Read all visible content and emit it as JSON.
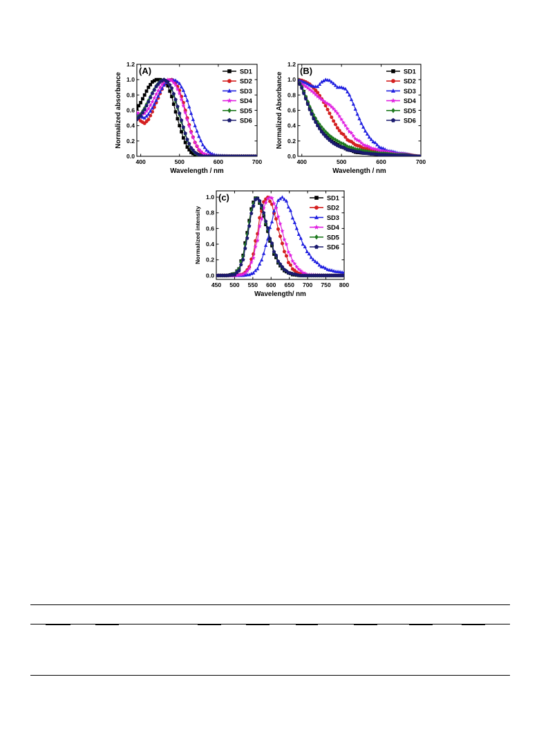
{
  "colors": {
    "SD1": "#000000",
    "SD2": "#d42020",
    "SD3": "#2020e0",
    "SD4": "#e020e0",
    "SD5": "#1f7a1f",
    "SD6": "#1a1a6e"
  },
  "chart_data": [
    {
      "type": "line",
      "panel_label": "(A)",
      "xlabel": "Wavelength / nm",
      "ylabel": "Normalized absorbance",
      "xlim": [
        390,
        700
      ],
      "ylim": [
        0.0,
        1.2
      ],
      "xticks": [
        "400",
        "500",
        "600",
        "700"
      ],
      "yticks": [
        "0.0",
        "0.2",
        "0.4",
        "0.6",
        "0.8",
        "1.0",
        "1.2"
      ],
      "legend_position": "top-right",
      "series": [
        {
          "name": "SD1",
          "marker": "square",
          "x": [
            390,
            400,
            410,
            420,
            430,
            440,
            450,
            460,
            470,
            480,
            490,
            500,
            510,
            520,
            530,
            540,
            550,
            560,
            580,
            600,
            650,
            700
          ],
          "y": [
            0.62,
            0.7,
            0.8,
            0.9,
            0.97,
            1.0,
            1.0,
            0.98,
            0.92,
            0.78,
            0.58,
            0.4,
            0.24,
            0.12,
            0.05,
            0.02,
            0.01,
            0.0,
            0.0,
            0.0,
            0.0,
            0.0
          ]
        },
        {
          "name": "SD2",
          "marker": "circle",
          "x": [
            390,
            400,
            410,
            420,
            430,
            440,
            450,
            460,
            470,
            480,
            490,
            500,
            510,
            520,
            530,
            540,
            550,
            560,
            570,
            580,
            600,
            650,
            700
          ],
          "y": [
            0.52,
            0.46,
            0.43,
            0.48,
            0.58,
            0.7,
            0.82,
            0.93,
            0.99,
            1.0,
            0.96,
            0.86,
            0.7,
            0.5,
            0.32,
            0.18,
            0.08,
            0.03,
            0.01,
            0.0,
            0.0,
            0.0,
            0.0
          ]
        },
        {
          "name": "SD3",
          "marker": "triangle",
          "x": [
            390,
            400,
            410,
            420,
            430,
            440,
            450,
            460,
            470,
            480,
            490,
            500,
            510,
            520,
            530,
            540,
            550,
            560,
            570,
            580,
            590,
            600,
            650,
            700
          ],
          "y": [
            0.55,
            0.52,
            0.5,
            0.55,
            0.63,
            0.73,
            0.84,
            0.93,
            0.99,
            1.0,
            0.99,
            0.95,
            0.86,
            0.73,
            0.56,
            0.4,
            0.26,
            0.15,
            0.08,
            0.04,
            0.02,
            0.01,
            0.0,
            0.0
          ]
        },
        {
          "name": "SD4",
          "marker": "star",
          "x": [
            390,
            400,
            410,
            420,
            430,
            440,
            450,
            460,
            470,
            480,
            490,
            500,
            510,
            520,
            530,
            540,
            550,
            560,
            570,
            580,
            600,
            650,
            700
          ],
          "y": [
            0.57,
            0.55,
            0.56,
            0.62,
            0.71,
            0.81,
            0.9,
            0.97,
            1.0,
            0.99,
            0.93,
            0.82,
            0.66,
            0.48,
            0.31,
            0.18,
            0.09,
            0.04,
            0.02,
            0.01,
            0.0,
            0.0,
            0.0
          ]
        },
        {
          "name": "SD5",
          "marker": "diamond",
          "x": [
            390,
            400,
            410,
            420,
            430,
            440,
            450,
            460,
            470,
            480,
            490,
            500,
            510,
            520,
            530,
            540,
            550,
            560,
            580,
            600,
            650,
            700
          ],
          "y": [
            0.5,
            0.55,
            0.63,
            0.73,
            0.83,
            0.92,
            0.98,
            1.0,
            0.97,
            0.88,
            0.72,
            0.54,
            0.36,
            0.21,
            0.1,
            0.04,
            0.01,
            0.0,
            0.0,
            0.0,
            0.0,
            0.0
          ]
        },
        {
          "name": "SD6",
          "marker": "pentagon",
          "x": [
            390,
            400,
            410,
            420,
            430,
            440,
            450,
            460,
            470,
            480,
            490,
            500,
            510,
            520,
            530,
            540,
            550,
            560,
            580,
            600,
            650,
            700
          ],
          "y": [
            0.48,
            0.53,
            0.61,
            0.71,
            0.82,
            0.91,
            0.97,
            1.0,
            0.97,
            0.89,
            0.74,
            0.56,
            0.38,
            0.22,
            0.11,
            0.05,
            0.02,
            0.0,
            0.0,
            0.0,
            0.0,
            0.0
          ]
        }
      ]
    },
    {
      "type": "line",
      "panel_label": "(B)",
      "xlabel": "Wavelength / nm",
      "ylabel": "Normalized Absorbance",
      "xlim": [
        390,
        700
      ],
      "ylim": [
        0.0,
        1.2
      ],
      "xticks": [
        "400",
        "500",
        "600",
        "700"
      ],
      "yticks": [
        "0.0",
        "0.2",
        "0.4",
        "0.6",
        "0.8",
        "1.0",
        "1.2"
      ],
      "legend_position": "top-right",
      "series": [
        {
          "name": "SD1",
          "marker": "square",
          "x": [
            390,
            400,
            410,
            420,
            430,
            440,
            450,
            460,
            470,
            480,
            490,
            500,
            520,
            540,
            560,
            580,
            600,
            650,
            700
          ],
          "y": [
            1.0,
            0.92,
            0.77,
            0.62,
            0.5,
            0.41,
            0.33,
            0.27,
            0.22,
            0.18,
            0.15,
            0.12,
            0.08,
            0.05,
            0.04,
            0.03,
            0.02,
            0.01,
            0.0
          ]
        },
        {
          "name": "SD2",
          "marker": "circle",
          "x": [
            390,
            400,
            410,
            420,
            430,
            440,
            450,
            460,
            470,
            480,
            490,
            500,
            520,
            540,
            560,
            580,
            600,
            650,
            700
          ],
          "y": [
            1.0,
            0.99,
            0.97,
            0.94,
            0.89,
            0.83,
            0.75,
            0.66,
            0.56,
            0.46,
            0.37,
            0.3,
            0.2,
            0.14,
            0.1,
            0.08,
            0.06,
            0.03,
            0.0
          ]
        },
        {
          "name": "SD3",
          "marker": "triangle",
          "x": [
            390,
            400,
            410,
            420,
            430,
            440,
            450,
            460,
            470,
            480,
            490,
            500,
            510,
            520,
            530,
            540,
            550,
            560,
            570,
            580,
            600,
            620,
            650,
            700
          ],
          "y": [
            1.0,
            0.98,
            0.96,
            0.93,
            0.91,
            0.91,
            0.97,
            1.0,
            0.99,
            0.95,
            0.9,
            0.9,
            0.88,
            0.8,
            0.68,
            0.55,
            0.43,
            0.33,
            0.25,
            0.19,
            0.11,
            0.07,
            0.04,
            0.0
          ]
        },
        {
          "name": "SD4",
          "marker": "star",
          "x": [
            390,
            400,
            410,
            420,
            430,
            440,
            450,
            460,
            470,
            480,
            490,
            500,
            510,
            520,
            540,
            560,
            580,
            600,
            650,
            700
          ],
          "y": [
            0.98,
            0.94,
            0.91,
            0.87,
            0.83,
            0.78,
            0.74,
            0.7,
            0.67,
            0.62,
            0.56,
            0.48,
            0.4,
            0.32,
            0.21,
            0.14,
            0.1,
            0.07,
            0.03,
            0.0
          ]
        },
        {
          "name": "SD5",
          "marker": "diamond",
          "x": [
            390,
            400,
            410,
            420,
            430,
            440,
            450,
            460,
            470,
            480,
            490,
            500,
            520,
            540,
            560,
            580,
            600,
            650,
            700
          ],
          "y": [
            1.0,
            0.91,
            0.78,
            0.65,
            0.54,
            0.45,
            0.38,
            0.32,
            0.27,
            0.23,
            0.2,
            0.17,
            0.12,
            0.09,
            0.07,
            0.05,
            0.04,
            0.02,
            0.0
          ]
        },
        {
          "name": "SD6",
          "marker": "pentagon",
          "x": [
            390,
            400,
            410,
            420,
            430,
            440,
            450,
            460,
            470,
            480,
            490,
            500,
            520,
            540,
            560,
            580,
            600,
            650,
            700
          ],
          "y": [
            0.99,
            0.89,
            0.75,
            0.61,
            0.49,
            0.4,
            0.32,
            0.26,
            0.21,
            0.17,
            0.14,
            0.12,
            0.08,
            0.06,
            0.04,
            0.03,
            0.02,
            0.01,
            0.0
          ]
        }
      ]
    },
    {
      "type": "line",
      "panel_label": "(c)",
      "xlabel": "Wavelength/ nm",
      "ylabel": "Normalized intensity",
      "xlim": [
        450,
        800
      ],
      "ylim": [
        -0.05,
        1.08
      ],
      "xticks": [
        "450",
        "500",
        "550",
        "600",
        "650",
        "700",
        "750",
        "800"
      ],
      "yticks": [
        "0.0",
        "0.2",
        "0.4",
        "0.6",
        "0.8",
        "1.0"
      ],
      "legend_position": "top-right",
      "series": [
        {
          "name": "SD1",
          "marker": "square",
          "x": [
            450,
            480,
            500,
            510,
            520,
            530,
            540,
            550,
            560,
            570,
            580,
            590,
            600,
            610,
            620,
            630,
            640,
            650,
            660,
            680,
            700,
            750,
            800
          ],
          "y": [
            0.0,
            0.0,
            0.02,
            0.07,
            0.2,
            0.42,
            0.7,
            0.93,
            1.0,
            0.92,
            0.76,
            0.57,
            0.4,
            0.26,
            0.16,
            0.09,
            0.05,
            0.03,
            0.01,
            0.0,
            0.0,
            0.0,
            0.0
          ]
        },
        {
          "name": "SD2",
          "marker": "circle",
          "x": [
            450,
            500,
            520,
            530,
            540,
            550,
            560,
            570,
            580,
            590,
            600,
            610,
            620,
            630,
            640,
            650,
            660,
            670,
            680,
            700,
            750,
            800
          ],
          "y": [
            0.0,
            0.0,
            0.01,
            0.04,
            0.11,
            0.26,
            0.48,
            0.75,
            0.94,
            1.0,
            0.93,
            0.78,
            0.59,
            0.41,
            0.26,
            0.15,
            0.08,
            0.04,
            0.02,
            0.0,
            0.0,
            0.0
          ]
        },
        {
          "name": "SD3",
          "marker": "triangle",
          "x": [
            450,
            520,
            540,
            550,
            560,
            570,
            580,
            590,
            600,
            610,
            620,
            630,
            640,
            650,
            660,
            670,
            680,
            690,
            700,
            710,
            720,
            740,
            760,
            780,
            800
          ],
          "y": [
            0.0,
            0.0,
            0.01,
            0.03,
            0.07,
            0.15,
            0.28,
            0.46,
            0.66,
            0.84,
            0.96,
            1.0,
            0.96,
            0.86,
            0.73,
            0.6,
            0.48,
            0.38,
            0.3,
            0.23,
            0.18,
            0.11,
            0.07,
            0.05,
            0.04
          ]
        },
        {
          "name": "SD4",
          "marker": "star",
          "x": [
            450,
            500,
            520,
            530,
            540,
            550,
            560,
            570,
            580,
            590,
            600,
            610,
            620,
            630,
            640,
            650,
            660,
            670,
            680,
            690,
            700,
            750,
            800
          ],
          "y": [
            0.0,
            0.0,
            0.01,
            0.03,
            0.09,
            0.21,
            0.4,
            0.64,
            0.86,
            0.98,
            1.0,
            0.91,
            0.75,
            0.57,
            0.41,
            0.28,
            0.18,
            0.11,
            0.06,
            0.03,
            0.01,
            0.0,
            0.0
          ]
        },
        {
          "name": "SD5",
          "marker": "diamond",
          "x": [
            450,
            480,
            500,
            510,
            520,
            530,
            540,
            550,
            560,
            570,
            580,
            590,
            600,
            610,
            620,
            630,
            640,
            650,
            660,
            680,
            700,
            750,
            800
          ],
          "y": [
            0.0,
            0.0,
            0.02,
            0.07,
            0.19,
            0.4,
            0.68,
            0.91,
            1.0,
            0.93,
            0.78,
            0.59,
            0.42,
            0.28,
            0.17,
            0.1,
            0.06,
            0.03,
            0.02,
            0.0,
            0.0,
            0.0,
            0.0
          ]
        },
        {
          "name": "SD6",
          "marker": "pentagon",
          "x": [
            450,
            480,
            500,
            510,
            520,
            530,
            540,
            550,
            560,
            570,
            580,
            590,
            600,
            610,
            620,
            630,
            640,
            650,
            660,
            680,
            700,
            750,
            800
          ],
          "y": [
            0.0,
            0.0,
            0.01,
            0.05,
            0.15,
            0.35,
            0.63,
            0.88,
            0.99,
            0.95,
            0.8,
            0.61,
            0.43,
            0.29,
            0.18,
            0.11,
            0.06,
            0.03,
            0.02,
            0.0,
            0.0,
            0.0,
            0.0
          ]
        }
      ]
    }
  ]
}
